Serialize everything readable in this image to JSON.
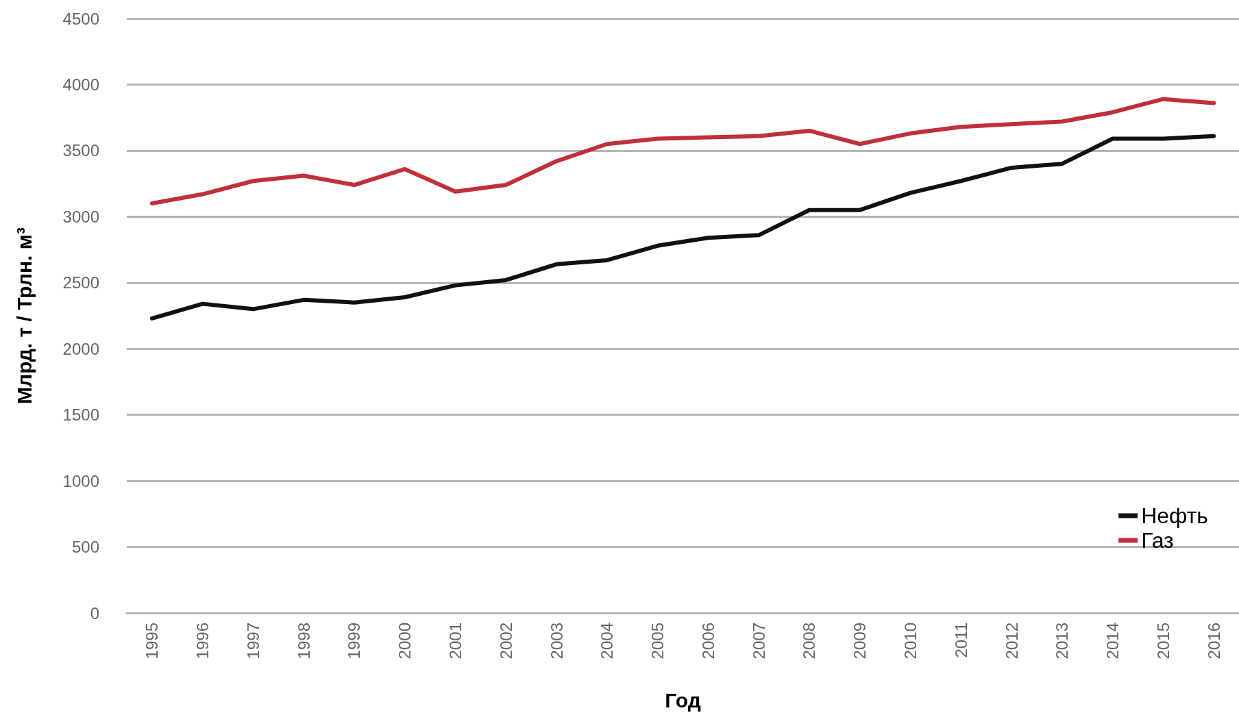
{
  "chart_data": {
    "type": "line",
    "xlabel": "Год",
    "ylabel": "Млрд. т / Трлн. м³",
    "categories": [
      "1995",
      "1996",
      "1997",
      "1998",
      "1999",
      "2000",
      "2001",
      "2002",
      "2003",
      "2004",
      "2005",
      "2006",
      "2007",
      "2008",
      "2009",
      "2010",
      "2011",
      "2012",
      "2013",
      "2014",
      "2015",
      "2016"
    ],
    "series": [
      {
        "name": "Нефть",
        "color": "#111111",
        "values": [
          2230,
          2340,
          2300,
          2370,
          2350,
          2390,
          2480,
          2520,
          2640,
          2670,
          2780,
          2840,
          2860,
          3050,
          3050,
          3180,
          3270,
          3370,
          3400,
          3590,
          3590,
          3610
        ]
      },
      {
        "name": "Газ",
        "color": "#c0303a",
        "values": [
          3100,
          3170,
          3270,
          3310,
          3240,
          3360,
          3190,
          3240,
          3420,
          3550,
          3590,
          3600,
          3610,
          3650,
          3550,
          3630,
          3680,
          3700,
          3720,
          3790,
          3890,
          3860
        ]
      }
    ],
    "ylim": [
      0,
      4500
    ],
    "yticks": [
      0,
      500,
      1000,
      1500,
      2000,
      2500,
      3000,
      3500,
      4000,
      4500
    ],
    "grid": "y",
    "legend": "bottom right",
    "marker": "none",
    "line_style": "solid"
  }
}
